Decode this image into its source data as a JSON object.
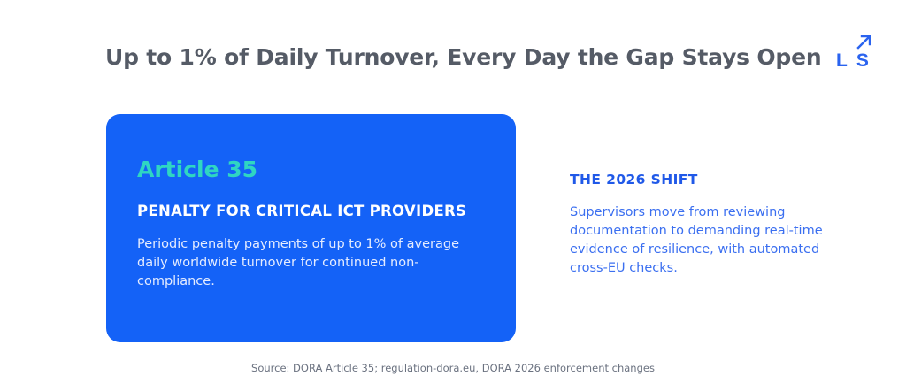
{
  "slide": {
    "title": "Up to 1% of Daily Turnover, Every Day the Gap Stays Open"
  },
  "logo": {
    "letters": "LS",
    "icon": "arrow-up-right-icon",
    "color": "#2a63ef"
  },
  "card": {
    "tag": "Article 35",
    "heading": "PENALTY FOR CRITICAL ICT PROVIDERS",
    "body": "Periodic penalty payments of up to 1% of average daily worldwide turnover for continued non-compliance.",
    "background_color": "#1462f7",
    "tag_color": "#2fd6c2"
  },
  "side": {
    "heading": "THE 2026 SHIFT",
    "body": "Supervisors move from reviewing documentation to demanding real-time evidence of resilience, with automated cross-EU checks.",
    "color": "#2059e8"
  },
  "footer": {
    "source": "Source: DORA Article 35; regulation-dora.eu, DORA 2026 enforcement changes"
  }
}
